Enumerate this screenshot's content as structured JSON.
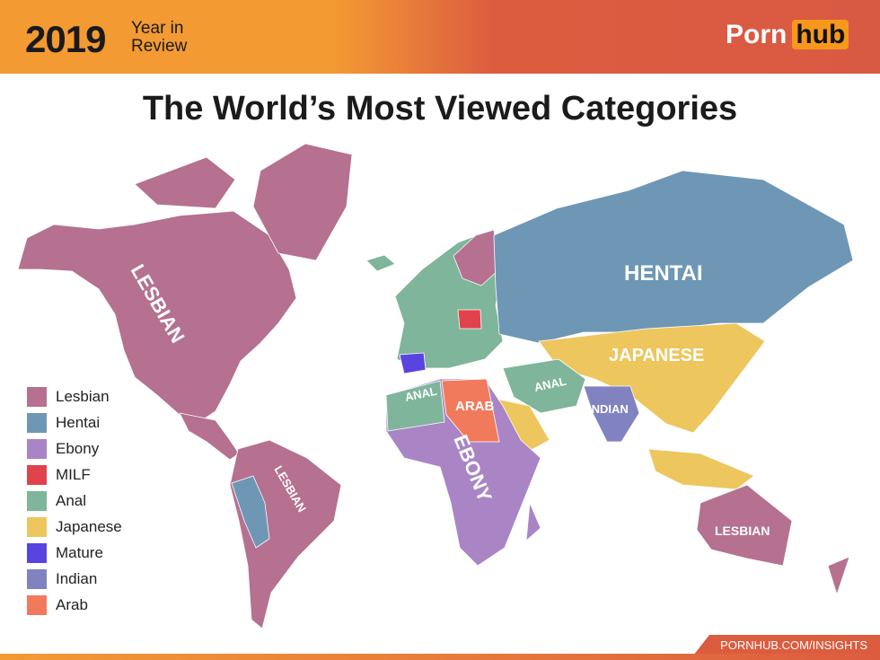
{
  "header": {
    "year": "2019",
    "subtitle": "Year in Review",
    "logo_part1": "Porn",
    "logo_part2": "hub"
  },
  "title": "The World’s Most Viewed Categories",
  "legend": [
    {
      "label": "Lesbian",
      "color": "#b5718f"
    },
    {
      "label": "Hentai",
      "color": "#6e97b5"
    },
    {
      "label": "Ebony",
      "color": "#a985c5"
    },
    {
      "label": "MILF",
      "color": "#e0434b"
    },
    {
      "label": "Anal",
      "color": "#7fb59a"
    },
    {
      "label": "Japanese",
      "color": "#eec65e"
    },
    {
      "label": "Mature",
      "color": "#5a44e0"
    },
    {
      "label": "Indian",
      "color": "#8083c0"
    },
    {
      "label": "Arab",
      "color": "#f27a5c"
    }
  ],
  "map_labels": {
    "north_america": "LESBIAN",
    "south_america": "LESBIAN",
    "russia": "HENTAI",
    "east_asia": "JAPANESE",
    "north_africa": "ANAL",
    "arab": "ARAB",
    "middle_east": "ANAL",
    "india": "INDIAN",
    "africa": "EBONY",
    "australia": "LESBIAN"
  },
  "footer": {
    "url": "PORNHUB.COM/INSIGHTS"
  }
}
